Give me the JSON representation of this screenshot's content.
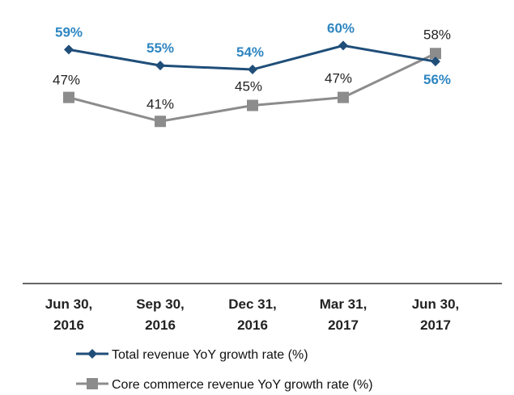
{
  "chart_data": {
    "type": "line",
    "categories": [
      [
        "Jun 30,",
        "2016"
      ],
      [
        "Sep 30,",
        "2016"
      ],
      [
        "Dec 31,",
        "2016"
      ],
      [
        "Mar 31,",
        "2017"
      ],
      [
        "Jun 30,",
        "2017"
      ]
    ],
    "series": [
      {
        "name": "Total revenue YoY growth rate (%)",
        "values": [
          59,
          55,
          54,
          60,
          56
        ],
        "labels": [
          "59%",
          "55%",
          "54%",
          "60%",
          "56%"
        ],
        "color": "#1f4e79",
        "label_color": "#2e86c1",
        "marker": "diamond"
      },
      {
        "name": "Core commerce revenue YoY growth rate (%)",
        "values": [
          47,
          41,
          45,
          47,
          58
        ],
        "labels": [
          "47%",
          "41%",
          "45%",
          "47%",
          "58%"
        ],
        "color": "#8c8c8c",
        "label_color": "#222222",
        "marker": "square"
      }
    ],
    "grid": false,
    "legend_position": "bottom"
  }
}
